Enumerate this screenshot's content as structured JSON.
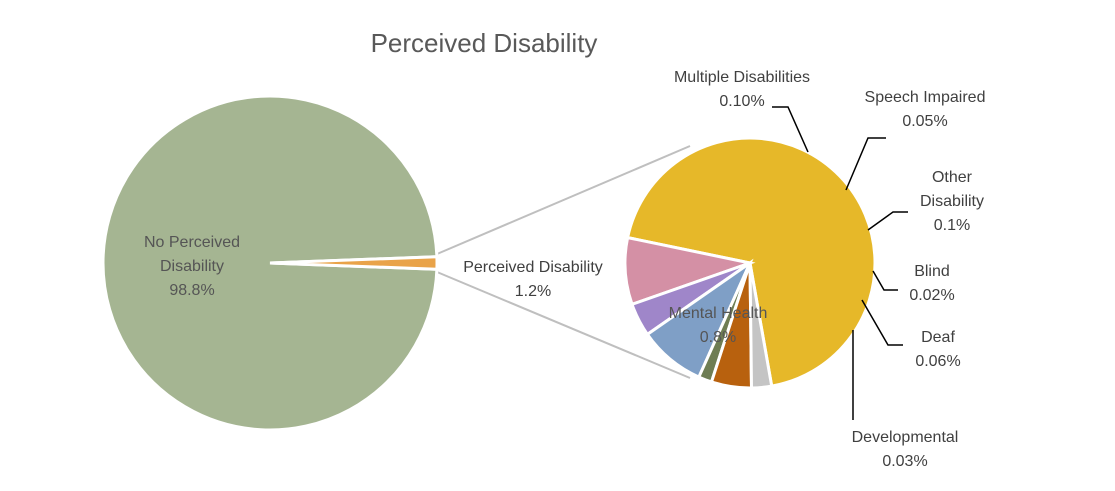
{
  "chart_data": {
    "type": "pie",
    "subtype": "pie-of-pie",
    "title": "Perceived Disability",
    "main_pie": {
      "slices": [
        {
          "label_lines": [
            "No Perceived",
            "Disability"
          ],
          "value_label": "98.8%",
          "value": 98.8,
          "color": "#a5b592"
        },
        {
          "label_lines": [
            "Perceived Disability"
          ],
          "value_label": "1.2%",
          "value": 1.2,
          "color": "#e9a349"
        }
      ]
    },
    "sub_pie": {
      "slices": [
        {
          "label_lines": [
            "Mental Health"
          ],
          "value_label": "0.8%",
          "value": 0.8,
          "color": "#e6b829"
        },
        {
          "label_lines": [
            "Multiple Disabilities"
          ],
          "value_label": "0.10%",
          "value": 0.1,
          "color": "#d490a5"
        },
        {
          "label_lines": [
            "Speech Impaired"
          ],
          "value_label": "0.05%",
          "value": 0.05,
          "color": "#9f86c9"
        },
        {
          "label_lines": [
            "Other",
            "Disability"
          ],
          "value_label": "0.1%",
          "value": 0.1,
          "color": "#7f9fc6"
        },
        {
          "label_lines": [
            "Blind"
          ],
          "value_label": "0.02%",
          "value": 0.02,
          "color": "#6e7d53"
        },
        {
          "label_lines": [
            "Deaf"
          ],
          "value_label": "0.06%",
          "value": 0.06,
          "color": "#b8610e"
        },
        {
          "label_lines": [
            "Developmental"
          ],
          "value_label": "0.03%",
          "value": 0.03,
          "color": "#c4c4c4"
        }
      ]
    },
    "legend": "none"
  }
}
